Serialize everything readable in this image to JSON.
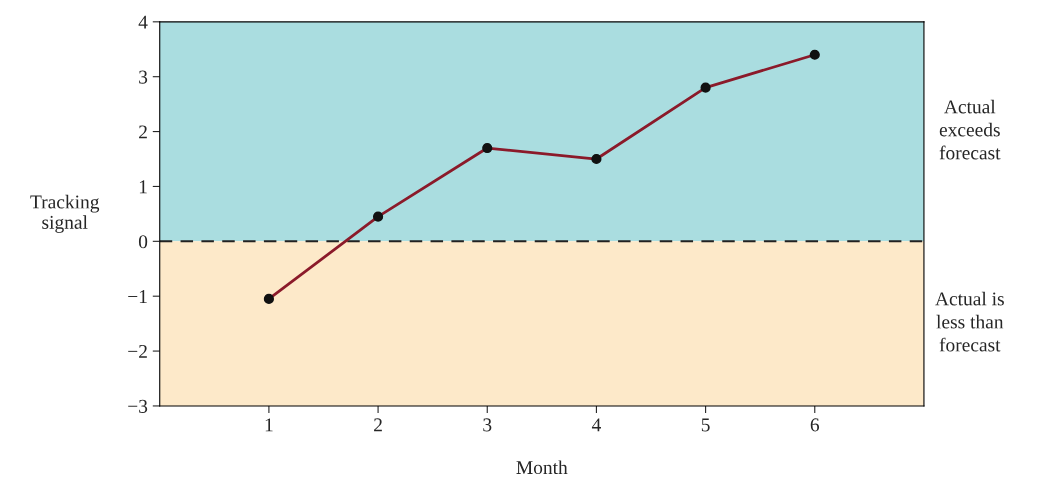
{
  "chart_data": {
    "type": "line",
    "xlabel": "Month",
    "ylabel": "Tracking\nsignal",
    "x": [
      1,
      2,
      3,
      4,
      5,
      6
    ],
    "series": [
      {
        "color": "#8b1a2a",
        "values": [
          -1.05,
          0.45,
          1.7,
          1.5,
          2.8,
          3.4
        ]
      }
    ],
    "xlim": [
      0,
      7
    ],
    "xticks": [
      1,
      2,
      3,
      4,
      5,
      6
    ],
    "ylim": [
      -3,
      4
    ],
    "yticks": [
      -3,
      -2,
      -1,
      0,
      1,
      2,
      3,
      4
    ],
    "bands": [
      {
        "axis": "y",
        "from": 0,
        "to": 4,
        "label": "Actual\nexceeds\nforecast",
        "color": "#aadde0"
      },
      {
        "axis": "y",
        "from": -3,
        "to": 0,
        "label": "Actual is\nless than\nforecast",
        "color": "#fde9c9"
      }
    ],
    "ref_lines": [
      {
        "axis": "y",
        "value": 0,
        "line_style": "dashed",
        "color": "#222222"
      }
    ],
    "marker": "circle",
    "line_style": "solid",
    "grid": false
  }
}
